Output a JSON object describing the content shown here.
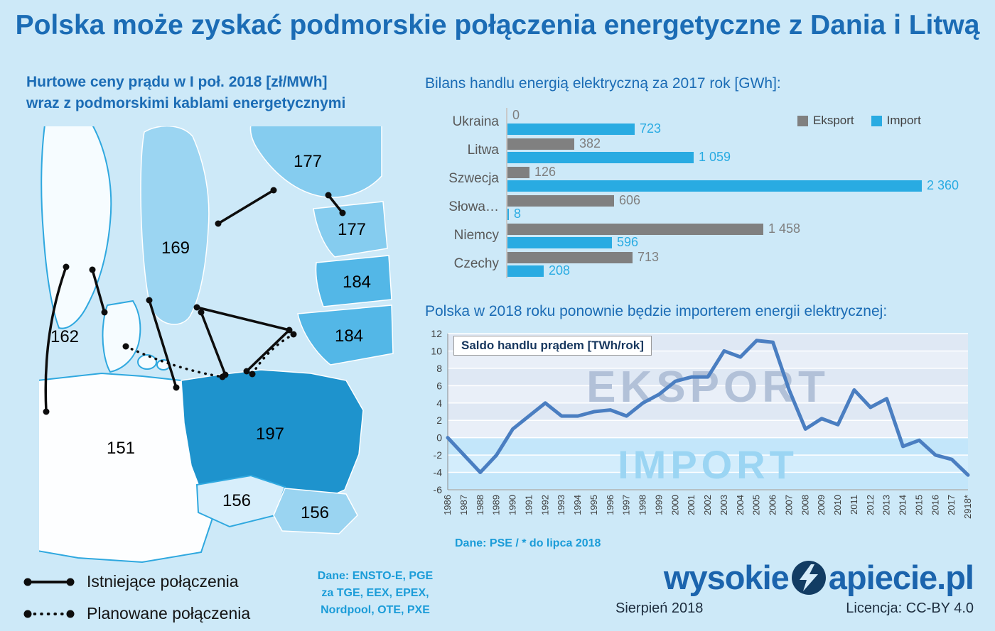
{
  "page": {
    "title": "Polska może zyskać podmorskie połączenia energetyczne z Dania i Litwą",
    "background_color": "#cde9f8",
    "accent_color": "#1b6cb5"
  },
  "map_section": {
    "subtitle_line1": "Hurtowe ceny prądu w I poł. 2018 [zł/MWh]",
    "subtitle_line2": "wraz z podmorskimi kablami energetycznymi",
    "unit": "zł/MWh",
    "prices": [
      {
        "country": "Finlandia",
        "value": "177"
      },
      {
        "country": "Szwecja",
        "value": "169"
      },
      {
        "country": "Estonia",
        "value": "177"
      },
      {
        "country": "Łotwa",
        "value": "184"
      },
      {
        "country": "Litwa",
        "value": "184"
      },
      {
        "country": "Norwegia",
        "value": "162"
      },
      {
        "country": "Niemcy",
        "value": "151"
      },
      {
        "country": "Polska",
        "value": "197"
      },
      {
        "country": "Czechy",
        "value": "156"
      },
      {
        "country": "Słowacja",
        "value": "156"
      }
    ],
    "legend": [
      {
        "style": "solid",
        "label": "Istniejące połączenia"
      },
      {
        "style": "dotted",
        "label": "Planowane połączenia"
      }
    ],
    "source_lines": [
      "Dane: ENSTO-E, PGE",
      "za TGE, EEX, EPEX,",
      "Nordpool, OTE, PXE"
    ]
  },
  "chart_data": [
    {
      "type": "bar",
      "orientation": "horizontal",
      "title": "Bilans handlu energią elektryczną za 2017 rok [GWh]:",
      "categories": [
        "Ukraina",
        "Litwa",
        "Szwecja",
        "Słowa…",
        "Niemcy",
        "Czechy"
      ],
      "series": [
        {
          "name": "Eksport",
          "color": "#808080",
          "label_color": "#7f7f7f",
          "values": [
            0,
            382,
            126,
            606,
            1458,
            713
          ],
          "labels": [
            "0",
            "382",
            "126",
            "606",
            "1 458",
            "713"
          ]
        },
        {
          "name": "Import",
          "color": "#29abe2",
          "label_color": "#29abe2",
          "values": [
            723,
            1059,
            2360,
            8,
            596,
            208
          ],
          "labels": [
            "723",
            "1 059",
            "2 360",
            "8",
            "596",
            "208"
          ]
        }
      ],
      "xlim": [
        0,
        2500
      ],
      "legend_position": "top-right",
      "grid": false
    },
    {
      "type": "line",
      "title": "Polska w 2018 roku ponownie będzie importerem energii elektrycznej:",
      "inner_label": "Saldo handlu prądem [TWh/rok]",
      "x": [
        "1986",
        "1987",
        "1988",
        "1989",
        "1990",
        "1991",
        "1992",
        "1993",
        "1994",
        "1995",
        "1996",
        "1997",
        "1998",
        "1999",
        "2000",
        "2001",
        "2002",
        "2003",
        "2004",
        "2005",
        "2006",
        "2007",
        "2008",
        "2009",
        "2010",
        "2011",
        "2012",
        "2013",
        "2014",
        "2015",
        "2016",
        "2017",
        "2918*"
      ],
      "values": [
        0,
        -2,
        -4,
        -2,
        1,
        2.5,
        4,
        2.5,
        2.5,
        3,
        3.2,
        2.5,
        4,
        5,
        6.5,
        7,
        7,
        10,
        9.3,
        11.2,
        11,
        5.5,
        1,
        2.2,
        1.5,
        5.5,
        3.5,
        4.5,
        -1,
        -0.3,
        -2,
        -2.5,
        -4.3
      ],
      "ylim": [
        -6,
        12
      ],
      "ytick_step": 2,
      "line_color": "#4a7ec1",
      "watermarks": {
        "upper": "EKSPORT",
        "lower": "IMPORT"
      },
      "source": "Dane: PSE / * do lipca 2018"
    }
  ],
  "footer": {
    "logo_prefix": "wysokie",
    "logo_suffix": "apiecie.pl",
    "date": "Sierpień 2018",
    "license": "Licencja: CC-BY 4.0"
  }
}
